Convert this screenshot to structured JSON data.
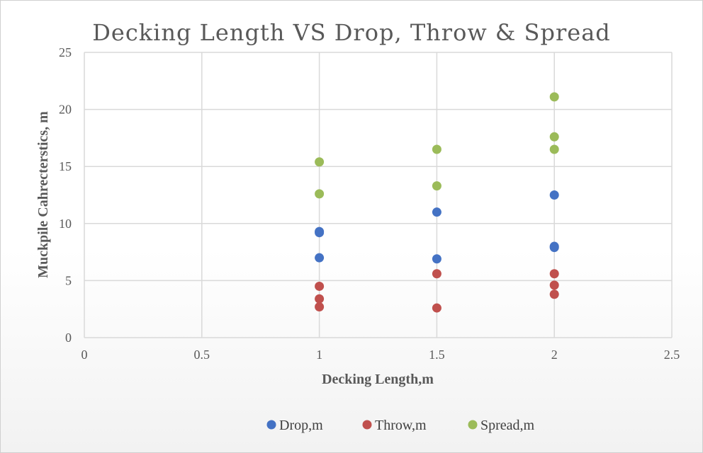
{
  "chart_data": {
    "type": "scatter",
    "title": "Decking Length VS Drop, Throw & Spread",
    "xlabel": "Decking Length,m",
    "ylabel": "Muckpile Cahrecterstics, m",
    "xlim": [
      0,
      2.5
    ],
    "ylim": [
      0,
      25
    ],
    "x_ticks": [
      "0",
      "0.5",
      "1",
      "1.5",
      "2",
      "2.5"
    ],
    "y_ticks": [
      "0",
      "5",
      "10",
      "15",
      "20",
      "25"
    ],
    "grid": true,
    "legend_position": "bottom",
    "series": [
      {
        "name": "Drop,m",
        "color": "#4472c4",
        "points": [
          [
            1,
            7.0
          ],
          [
            1,
            9.2
          ],
          [
            1,
            9.3
          ],
          [
            1.5,
            6.9
          ],
          [
            1.5,
            11.0
          ],
          [
            2,
            7.9
          ],
          [
            2,
            8.0
          ],
          [
            2,
            12.5
          ]
        ]
      },
      {
        "name": "Throw,m",
        "color": "#c0504d",
        "points": [
          [
            1,
            2.7
          ],
          [
            1,
            3.4
          ],
          [
            1,
            4.5
          ],
          [
            1.5,
            2.6
          ],
          [
            1.5,
            5.6
          ],
          [
            2,
            3.8
          ],
          [
            2,
            4.6
          ],
          [
            2,
            5.6
          ]
        ]
      },
      {
        "name": "Spread,m",
        "color": "#9bbb59",
        "points": [
          [
            1,
            12.6
          ],
          [
            1,
            15.4
          ],
          [
            1.5,
            13.3
          ],
          [
            1.5,
            16.5
          ],
          [
            2,
            16.5
          ],
          [
            2,
            17.6
          ],
          [
            2,
            21.1
          ]
        ]
      }
    ]
  }
}
